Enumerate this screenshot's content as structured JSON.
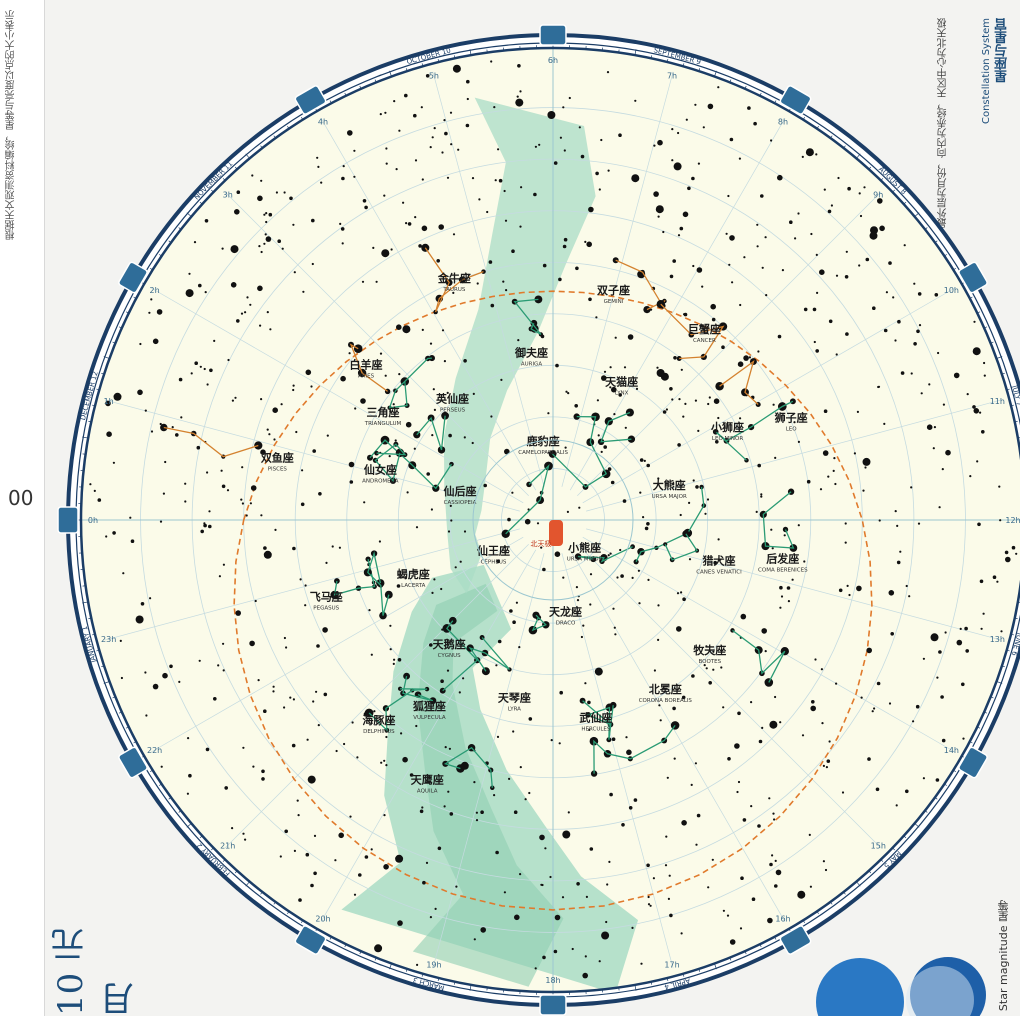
{
  "map": {
    "ra_zero_label": "00",
    "bottom_title": "10 元 月",
    "right_title": "星座与星官",
    "right_subtitle": "Constellation System",
    "right_description": "四个最外层为月份，向内为赤经，天区中心为北天极",
    "left_description": "根据天文观测资料编绘，星等与亮度以点的大小表示",
    "magnitude_legend": "Star magnitude 星等",
    "colors": {
      "milky_way": "#a9dcc6",
      "background": "#fbfbe9",
      "ring_border": "#1b3d66",
      "constellation_line": "#2a9b74",
      "ecliptic": "#e07a2c",
      "zodiac_line": "#d4822f",
      "grid": "#c5dbe0"
    },
    "ring_months": [
      "DECEMBER 12",
      "NOVEMBER 11",
      "OCTOBER 10",
      "SEPTEMBER 9",
      "AUGUST 8",
      "JULY 7",
      "JUNE 6",
      "MAY 5",
      "APRIL 4",
      "MARCH 3",
      "FEBRUARY 2",
      "JANUARY 1"
    ],
    "ra_hours": [
      "0h",
      "1h",
      "2h",
      "3h",
      "4h",
      "5h",
      "6h",
      "7h",
      "8h",
      "9h",
      "10h",
      "11h",
      "12h",
      "13h",
      "14h",
      "15h",
      "16h",
      "17h",
      "18h",
      "19h",
      "20h",
      "21h",
      "22h",
      "23h"
    ],
    "center_label": "北天极",
    "constellations": [
      {
        "name": "天鹅座",
        "latin": "CYGNUS",
        "ra_h": 20.6,
        "dec": 42
      },
      {
        "name": "天琴座",
        "latin": "LYRA",
        "ra_h": 18.8,
        "dec": 36
      },
      {
        "name": "武仙座",
        "latin": "HERCULES",
        "ra_h": 17.2,
        "dec": 30
      },
      {
        "name": "天龙座",
        "latin": "DRACO",
        "ra_h": 17.5,
        "dec": 62
      },
      {
        "name": "小熊座",
        "latin": "URSA MINOR",
        "ra_h": 15,
        "dec": 77
      },
      {
        "name": "大熊座",
        "latin": "URSA MAJOR",
        "ra_h": 11,
        "dec": 55
      },
      {
        "name": "仙王座",
        "latin": "CEPHEUS",
        "ra_h": 22,
        "dec": 70
      },
      {
        "name": "仙后座",
        "latin": "CASSIOPEIA",
        "ra_h": 1,
        "dec": 62
      },
      {
        "name": "仙女座",
        "latin": "ANDROMEDA",
        "ra_h": 1,
        "dec": 38
      },
      {
        "name": "英仙座",
        "latin": "PERSEUS",
        "ra_h": 3.3,
        "dec": 45
      },
      {
        "name": "御夫座",
        "latin": "AURIGA",
        "ra_h": 5.5,
        "dec": 42
      },
      {
        "name": "鹿豹座",
        "latin": "CAMELOPARDALIS",
        "ra_h": 5.5,
        "dec": 68
      },
      {
        "name": "猎犬座",
        "latin": "CANES VENATICI",
        "ra_h": 13,
        "dec": 40
      },
      {
        "name": "牧夫座",
        "latin": "BOOTES",
        "ra_h": 14.7,
        "dec": 30
      },
      {
        "name": "北冕座",
        "latin": "CORONA BOREALIS",
        "ra_h": 15.8,
        "dec": 30
      },
      {
        "name": "狮子座",
        "latin": "LEO",
        "ra_h": 10.5,
        "dec": 15
      },
      {
        "name": "双子座",
        "latin": "GEMINI",
        "ra_h": 7,
        "dec": 22
      },
      {
        "name": "金牛座",
        "latin": "TAURUS",
        "ra_h": 4.5,
        "dec": 15
      },
      {
        "name": "白羊座",
        "latin": "ARIES",
        "ra_h": 2.6,
        "dec": 20
      },
      {
        "name": "飞马座",
        "latin": "PEGASUS",
        "ra_h": 22.7,
        "dec": 20
      },
      {
        "name": "蝎虎座",
        "latin": "LACERTA",
        "ra_h": 22.5,
        "dec": 46
      },
      {
        "name": "狐狸座",
        "latin": "VULPECULA",
        "ra_h": 20.2,
        "dec": 24
      },
      {
        "name": "天鹰座",
        "latin": "AQUILA",
        "ra_h": 19.7,
        "dec": 5
      },
      {
        "name": "海豚座",
        "latin": "DELPHINUS",
        "ra_h": 20.7,
        "dec": 12
      },
      {
        "name": "双鱼座",
        "latin": "PISCES",
        "ra_h": 0.8,
        "dec": 8
      },
      {
        "name": "巨蟹座",
        "latin": "CANCER",
        "ra_h": 8.6,
        "dec": 20
      },
      {
        "name": "小狮座",
        "latin": "LEO MINOR",
        "ra_h": 10.2,
        "dec": 33
      },
      {
        "name": "天猫座",
        "latin": "LYNX",
        "ra_h": 7.8,
        "dec": 46
      },
      {
        "name": "后发座",
        "latin": "COMA BERENICES",
        "ra_h": 12.7,
        "dec": 22
      },
      {
        "name": "三角座",
        "latin": "TRIANGULUM",
        "ra_h": 2.1,
        "dec": 32
      }
    ]
  }
}
